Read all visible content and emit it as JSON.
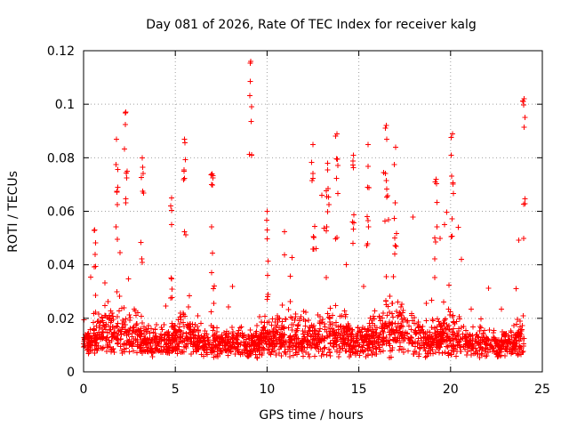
{
  "chart_data": {
    "type": "scatter",
    "title": "Day 081 of 2026, Rate Of TEC Index for receiver kalg",
    "xlabel": "GPS time / hours",
    "ylabel": "ROTI / TECUs",
    "xlim": [
      0,
      25
    ],
    "ylim": [
      0,
      0.12
    ],
    "xticks": [
      0,
      5,
      10,
      15,
      20,
      25
    ],
    "xtick_labels": [
      "0",
      "5",
      "10",
      "15",
      "20",
      "25"
    ],
    "yticks": [
      0,
      0.02,
      0.04,
      0.06,
      0.08,
      0.1,
      0.12
    ],
    "ytick_labels": [
      "0",
      "0.02",
      "0.04",
      "0.06",
      "0.08",
      "0.1",
      "0.12"
    ],
    "grid": true,
    "marker": "+",
    "color": "#ff0000",
    "series": [
      {
        "name": "ROTI",
        "x_range": [
          0,
          24
        ],
        "approx_points": 9000,
        "typical_range": [
          0.005,
          0.03
        ],
        "notable_points": [
          {
            "x": 9.1,
            "y": 0.116
          },
          {
            "x": 24.0,
            "y": 0.102
          },
          {
            "x": 2.3,
            "y": 0.097
          },
          {
            "x": 16.5,
            "y": 0.092
          },
          {
            "x": 13.8,
            "y": 0.089
          },
          {
            "x": 20.1,
            "y": 0.089
          },
          {
            "x": 5.5,
            "y": 0.087
          },
          {
            "x": 1.8,
            "y": 0.087
          },
          {
            "x": 12.5,
            "y": 0.085
          },
          {
            "x": 15.5,
            "y": 0.085
          },
          {
            "x": 17.0,
            "y": 0.084
          },
          {
            "x": 14.7,
            "y": 0.081
          },
          {
            "x": 3.2,
            "y": 0.08
          },
          {
            "x": 13.3,
            "y": 0.078
          },
          {
            "x": 19.2,
            "y": 0.072
          },
          {
            "x": 7.0,
            "y": 0.074
          },
          {
            "x": 4.8,
            "y": 0.065
          },
          {
            "x": 10.0,
            "y": 0.06
          },
          {
            "x": 0.6,
            "y": 0.053
          }
        ]
      }
    ]
  }
}
